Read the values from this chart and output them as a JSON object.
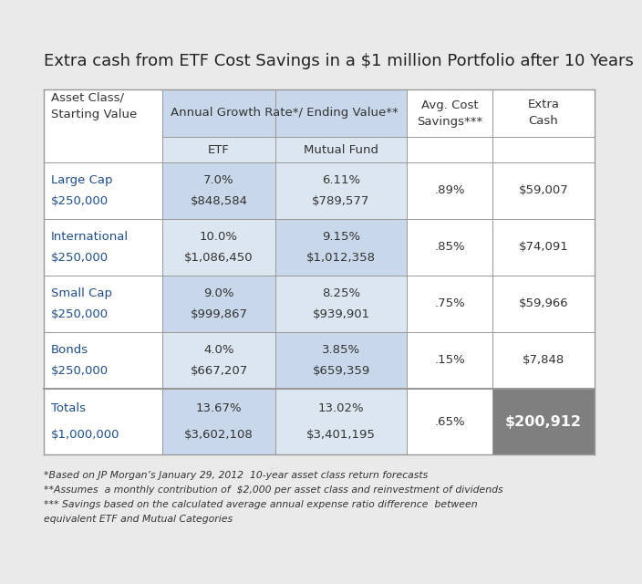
{
  "title": "Extra cash from ETF Cost Savings in a $1 million Portfolio after 10 Years",
  "bg_color": "#eaeaea",
  "table_bg": "#ffffff",
  "header_bg": "#c8d8ea",
  "subheader_bg": "#dce6f1",
  "totals_extra_bg": "#7f7f7f",
  "col_header_text": "#333333",
  "row_label_color": "#1f4e8c",
  "body_text_color": "#333333",
  "white_text": "#ffffff",
  "rows": [
    {
      "label1": "Large Cap",
      "label2": "$250,000",
      "etf_rate": "7.0%",
      "etf_value": "$848,584",
      "mf_rate": "6.11%",
      "mf_value": "$789,577",
      "savings": ".89%",
      "extra": "$59,007"
    },
    {
      "label1": "International",
      "label2": "$250,000",
      "etf_rate": "10.0%",
      "etf_value": "$1,086,450",
      "mf_rate": "9.15%",
      "mf_value": "$1,012,358",
      "savings": ".85%",
      "extra": "$74,091"
    },
    {
      "label1": "Small Cap",
      "label2": "$250,000",
      "etf_rate": "9.0%",
      "etf_value": "$999,867",
      "mf_rate": "8.25%",
      "mf_value": "$939,901",
      "savings": ".75%",
      "extra": "$59,966"
    },
    {
      "label1": "Bonds",
      "label2": "$250,000",
      "etf_rate": "4.0%",
      "etf_value": "$667,207",
      "mf_rate": "3.85%",
      "mf_value": "$659,359",
      "savings": ".15%",
      "extra": "$7,848"
    }
  ],
  "totals": {
    "label1": "Totals",
    "label2": "$1,000,000",
    "etf_rate": "13.67%",
    "etf_value": "$3,602,108",
    "mf_rate": "13.02%",
    "mf_value": "$3,401,195",
    "savings": ".65%",
    "extra": "$200,912"
  },
  "footnotes": [
    "*Based on JP Morgan’s January 29, 2012  10-year asset class return forecasts",
    "**Assumes  a monthly contribution of  $2,000 per asset class and reinvestment of dividends",
    "*** Savings based on the calculated average annual expense ratio difference  between",
    "equivalent ETF and Mutual Categories"
  ]
}
